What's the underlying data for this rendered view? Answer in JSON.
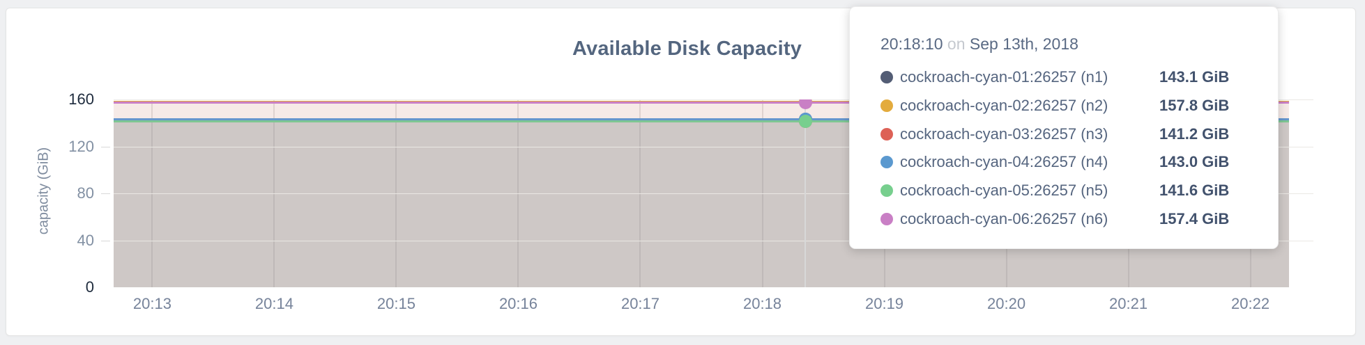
{
  "page": {
    "background": "#eff0f2"
  },
  "chart_data": {
    "type": "area",
    "title": "Available Disk Capacity",
    "ylabel": "capacity (GiB)",
    "ylim": [
      0,
      160
    ],
    "yticks": [
      0,
      40,
      80,
      120,
      160
    ],
    "ytick_maxmin": [
      0,
      160
    ],
    "xticks": [
      "20:13",
      "20:14",
      "20:15",
      "20:16",
      "20:17",
      "20:18",
      "20:19",
      "20:20",
      "20:21",
      "20:22"
    ],
    "x_domain": [
      "20:12:41",
      "20:22:31"
    ],
    "data_end": "20:22:19",
    "grid": "on",
    "legend_position": "tooltip",
    "series": [
      {
        "id": "n1",
        "name": "cockroach-cyan-01:26257 (n1)",
        "color": "#535d75",
        "value_gib": 143.1,
        "value_label": "143.1 GiB"
      },
      {
        "id": "n2",
        "name": "cockroach-cyan-02:26257 (n2)",
        "color": "#e3ab3d",
        "value_gib": 157.8,
        "value_label": "157.8 GiB"
      },
      {
        "id": "n3",
        "name": "cockroach-cyan-03:26257 (n3)",
        "color": "#dd6156",
        "value_gib": 141.2,
        "value_label": "141.2 GiB"
      },
      {
        "id": "n4",
        "name": "cockroach-cyan-04:26257 (n4)",
        "color": "#5b99cf",
        "value_gib": 143.0,
        "value_label": "143.0 GiB"
      },
      {
        "id": "n5",
        "name": "cockroach-cyan-05:26257 (n5)",
        "color": "#77cf8e",
        "value_gib": 141.6,
        "value_label": "141.6 GiB"
      },
      {
        "id": "n6",
        "name": "cockroach-cyan-06:26257 (n6)",
        "color": "#c97fc5",
        "value_gib": 157.4,
        "value_label": "157.4 GiB"
      }
    ],
    "hover": {
      "time": "20:18:10",
      "visible_dots": [
        "n5",
        "n6"
      ]
    }
  },
  "tooltip": {
    "time": "20:18:10",
    "separator": "on",
    "date": "Sep 13th, 2018"
  }
}
